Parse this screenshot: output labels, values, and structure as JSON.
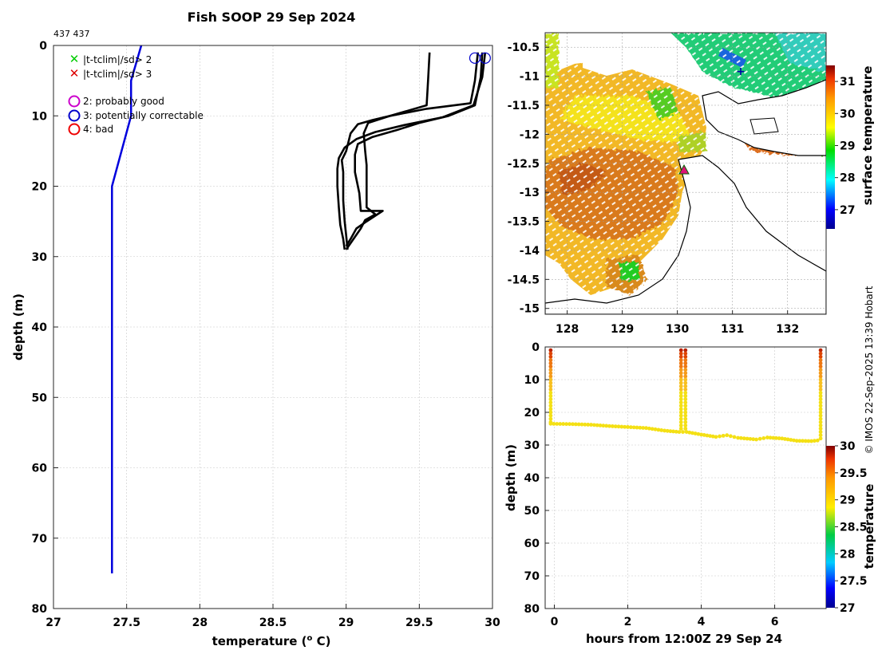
{
  "title": "Fish SOOP 29 Sep 2024",
  "counts_label": "437 437",
  "credit": "© IMOS 22-Sep-2025 13:39 Hobart",
  "legend": [
    {
      "marker": "x",
      "color": "#00cc00",
      "label": "|t-tclim|/sd> 2"
    },
    {
      "marker": "x",
      "color": "#dd0000",
      "label": "|t-tclim|/sd> 3"
    },
    {
      "marker": "o",
      "color": "#cc00cc",
      "label": "2: probably good"
    },
    {
      "marker": "o",
      "color": "#0000cc",
      "label": "3: potentially correctable"
    },
    {
      "marker": "o",
      "color": "#ee0000",
      "label": "4: bad"
    }
  ],
  "chart_data": [
    {
      "type": "line",
      "id": "profile",
      "xlabel": "temperature (o C)",
      "ylabel": "depth (m)",
      "xlim": [
        27,
        30
      ],
      "ylim": [
        0,
        80
      ],
      "y_reversed": true,
      "xticks": [
        27,
        27.5,
        28,
        28.5,
        29,
        29.5,
        30
      ],
      "yticks": [
        0,
        10,
        20,
        30,
        40,
        50,
        60,
        70,
        80
      ],
      "grid": true,
      "series": [
        {
          "name": "climatology",
          "color": "#0000dd",
          "points": [
            [
              27.6,
              0
            ],
            [
              27.53,
              5
            ],
            [
              27.53,
              10
            ],
            [
              27.4,
              20
            ],
            [
              27.4,
              75
            ]
          ]
        },
        {
          "name": "profile-1",
          "color": "#000000",
          "points": [
            [
              29.57,
              1
            ],
            [
              29.56,
              5
            ],
            [
              29.55,
              8.5
            ],
            [
              29.3,
              10
            ],
            [
              29.15,
              11
            ],
            [
              29.12,
              12.5
            ],
            [
              29.13,
              15
            ],
            [
              29.14,
              17
            ],
            [
              29.14,
              20
            ],
            [
              29.14,
              23
            ],
            [
              29.2,
              24
            ],
            [
              29.13,
              24.8
            ],
            [
              29.1,
              26
            ],
            [
              29.05,
              27.5
            ],
            [
              29.0,
              29
            ]
          ]
        },
        {
          "name": "profile-2",
          "color": "#000000",
          "points": [
            [
              29.9,
              1
            ],
            [
              29.88,
              5
            ],
            [
              29.85,
              8.2
            ],
            [
              29.55,
              9
            ],
            [
              29.3,
              10
            ],
            [
              29.18,
              10.6
            ],
            [
              29.08,
              11.2
            ],
            [
              29.03,
              12.5
            ],
            [
              29.0,
              15
            ],
            [
              28.97,
              16.3
            ],
            [
              28.98,
              18
            ],
            [
              28.98,
              20
            ],
            [
              28.98,
              22
            ],
            [
              28.99,
              25
            ],
            [
              29.0,
              27
            ],
            [
              29.01,
              29
            ]
          ]
        },
        {
          "name": "profile-3",
          "color": "#000000",
          "points": [
            [
              29.93,
              1
            ],
            [
              29.92,
              4.5
            ],
            [
              29.88,
              8.5
            ],
            [
              29.7,
              10
            ],
            [
              29.5,
              11
            ],
            [
              29.35,
              12
            ],
            [
              29.18,
              13
            ],
            [
              29.08,
              14
            ],
            [
              29.06,
              15.5
            ],
            [
              29.06,
              18
            ],
            [
              29.09,
              21
            ],
            [
              29.1,
              23.5
            ],
            [
              29.25,
              23.5
            ],
            [
              29.14,
              25
            ],
            [
              29.07,
              26
            ],
            [
              29.03,
              27.5
            ],
            [
              29.0,
              28.5
            ]
          ]
        },
        {
          "name": "profile-4",
          "color": "#000000",
          "points": [
            [
              29.95,
              1
            ],
            [
              29.93,
              4.5
            ],
            [
              29.87,
              8.5
            ],
            [
              29.66,
              10.2
            ],
            [
              29.4,
              11.3
            ],
            [
              29.2,
              12.3
            ],
            [
              29.07,
              13.3
            ],
            [
              28.99,
              14.5
            ],
            [
              28.95,
              16
            ],
            [
              28.94,
              17.5
            ],
            [
              28.94,
              20
            ],
            [
              28.95,
              23
            ],
            [
              28.96,
              25.5
            ],
            [
              28.98,
              27.5
            ],
            [
              28.99,
              29
            ]
          ]
        }
      ],
      "flag_markers": [
        [
          29.88,
          1
        ],
        [
          29.95,
          1
        ]
      ]
    },
    {
      "type": "heatmap",
      "id": "map",
      "colorbar_label": "surface temperature",
      "xlim": [
        127.6,
        132.7
      ],
      "ylim": [
        -15.1,
        -10.25
      ],
      "xticks": [
        128,
        129,
        130,
        131,
        132
      ],
      "yticks": [
        -10.5,
        -11,
        -11.5,
        -12,
        -12.5,
        -13,
        -13.5,
        -14,
        -14.5,
        -15
      ],
      "colorbar_ticks": [
        27,
        28,
        29,
        30,
        31
      ],
      "colorbar_range": [
        26.4,
        31.5
      ],
      "vessel_marker": [
        130.15,
        -12.6
      ],
      "grid": true
    },
    {
      "type": "scatter",
      "id": "timeseries",
      "xlabel": "hours from 12:00Z 29 Sep 24",
      "ylabel": "depth (m)",
      "colorbar_label": "temperature",
      "xlim": [
        -0.25,
        7.4
      ],
      "ylim": [
        0,
        80
      ],
      "y_reversed": true,
      "xticks": [
        0,
        2,
        4,
        6
      ],
      "yticks": [
        0,
        10,
        20,
        30,
        40,
        50,
        60,
        70,
        80
      ],
      "colorbar_ticks": [
        27,
        27.5,
        28,
        28.5,
        29,
        29.5,
        30
      ],
      "colorbar_range": [
        27,
        30
      ],
      "profiles": [
        {
          "hour": -0.1,
          "bottom_depth": 23.5
        },
        {
          "hour": 3.45,
          "bottom_depth": 25.8
        },
        {
          "hour": 3.57,
          "bottom_depth": 25.8
        },
        {
          "hour": 7.25,
          "bottom_depth": 28.5
        }
      ],
      "bottom_track": [
        [
          -0.1,
          23.5
        ],
        [
          0.5,
          23.6
        ],
        [
          1.0,
          23.8
        ],
        [
          1.5,
          24.2
        ],
        [
          2.0,
          24.5
        ],
        [
          2.5,
          24.8
        ],
        [
          3.0,
          25.6
        ],
        [
          3.4,
          26.0
        ],
        [
          3.6,
          26.0
        ],
        [
          4.0,
          26.8
        ],
        [
          4.4,
          27.5
        ],
        [
          4.7,
          27.0
        ],
        [
          5.0,
          27.8
        ],
        [
          5.5,
          28.3
        ],
        [
          5.8,
          27.7
        ],
        [
          6.2,
          28.0
        ],
        [
          6.6,
          28.7
        ],
        [
          7.0,
          28.8
        ],
        [
          7.25,
          28.5
        ]
      ],
      "grid": true
    }
  ]
}
